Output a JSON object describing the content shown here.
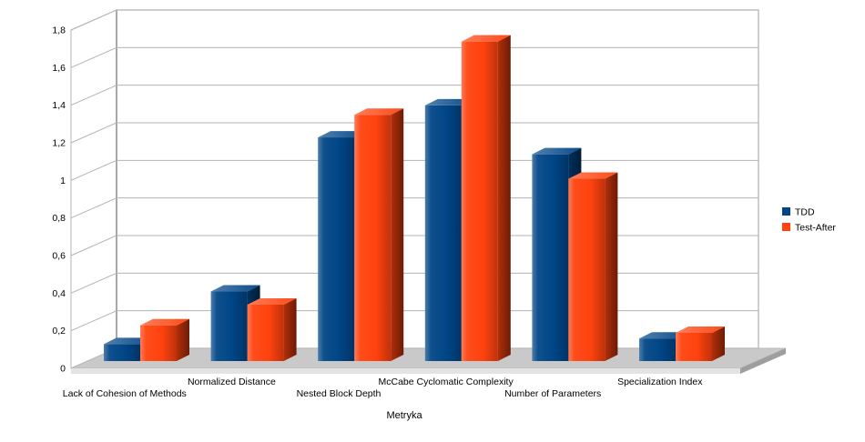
{
  "chart_data": {
    "type": "bar",
    "view": "3d",
    "title": "",
    "xlabel": "Metryka",
    "ylabel": "",
    "ylim": [
      0,
      1.8
    ],
    "ytick_step": 0.2,
    "ytick_labels": [
      "0",
      "0,2",
      "0,4",
      "0,6",
      "0,8",
      "1",
      "1,2",
      "1,4",
      "1,6",
      "1,8"
    ],
    "grid": true,
    "grid_color": "#b3b3b3",
    "floor_color": "#c9c9c9",
    "background_color": "#ffffff",
    "legend_position": "right",
    "categories": [
      "Lack of Cohesion of Methods",
      "Normalized Distance",
      "Nested Block Depth",
      "McCabe Cyclomatic Complexity",
      "Number of Parameters",
      "Specialization Index"
    ],
    "series": [
      {
        "name": "TDD",
        "color": "#004586",
        "values": [
          0.09,
          0.37,
          1.19,
          1.36,
          1.1,
          0.12
        ]
      },
      {
        "name": "Test-After",
        "color": "#FF420E",
        "values": [
          0.19,
          0.3,
          1.31,
          1.7,
          0.97,
          0.15
        ]
      }
    ]
  }
}
